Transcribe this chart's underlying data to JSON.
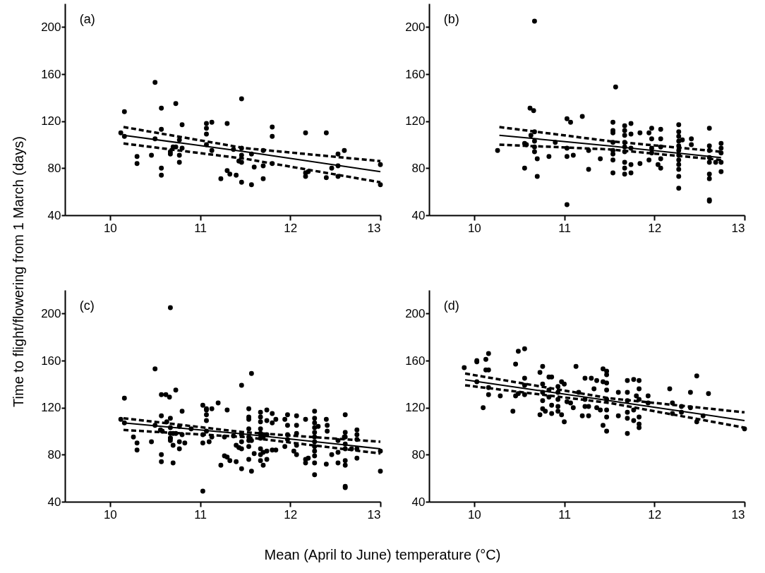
{
  "chart_data": [
    {
      "type": "scatter",
      "title": "(a)",
      "ylabel": "Time to flight/flowering from 1 March (days)",
      "xlim": [
        9.5,
        13
      ],
      "xticks": [
        10,
        11,
        12,
        13
      ],
      "ylim": [
        40,
        220
      ],
      "yticks": [
        40,
        80,
        120,
        160,
        200
      ],
      "series": [
        {
          "marker": "circle",
          "color": "#000000",
          "x": [
            10.12,
            10.16,
            10.16,
            10.3,
            10.3,
            10.46,
            10.5,
            10.5,
            10.57,
            10.57,
            10.57,
            10.57,
            10.67,
            10.67,
            10.7,
            10.73,
            10.73,
            10.77,
            10.77,
            10.77,
            10.8,
            10.8,
            11.07,
            11.07,
            11.07,
            11.07,
            11.13,
            11.13,
            11.23,
            11.3,
            11.3,
            11.33,
            11.37,
            11.4,
            11.43,
            11.46,
            11.46,
            11.46,
            11.46,
            11.46,
            11.57,
            11.57,
            11.6,
            11.7,
            11.7,
            11.7,
            11.8,
            11.8,
            11.8,
            12.17,
            12.17,
            12.17,
            12.2,
            12.4,
            12.4,
            12.46,
            12.53,
            12.53,
            12.53,
            12.6,
            13.0,
            13.0
          ],
          "values": [
            110,
            128,
            107,
            90,
            84,
            91,
            153,
            105,
            131,
            113,
            80,
            74,
            94,
            92,
            98,
            135,
            98,
            104,
            91,
            85,
            117,
            97,
            118,
            114,
            109,
            100,
            119,
            95,
            71,
            118,
            78,
            75,
            96,
            74,
            86,
            139,
            97,
            91,
            85,
            68,
            66,
            92,
            81,
            95,
            82,
            71,
            115,
            107,
            84,
            110,
            76,
            73,
            77,
            110,
            72,
            80,
            92,
            82,
            73,
            95,
            83,
            66
          ]
        },
        {
          "type": "line",
          "marker": "none",
          "line_style": "solid",
          "color": "#000000",
          "x": [
            10.15,
            11.5,
            13
          ],
          "values": [
            108,
            94,
            77
          ]
        },
        {
          "type": "line",
          "marker": "none",
          "line_style": "dashed",
          "color": "#000000",
          "x": [
            10.15,
            11.5,
            13
          ],
          "values": [
            115,
            97,
            86
          ]
        },
        {
          "type": "line",
          "marker": "none",
          "line_style": "dashed",
          "color": "#000000",
          "x": [
            10.15,
            11.5,
            13
          ],
          "values": [
            101,
            88,
            68
          ]
        }
      ]
    },
    {
      "type": "scatter",
      "title": "(b)",
      "xlim": [
        9.5,
        13
      ],
      "xticks": [
        10,
        11,
        12,
        13
      ],
      "ylim": [
        40,
        220
      ],
      "yticks": [
        40,
        80,
        120,
        160,
        200
      ],
      "series": [
        {
          "marker": "circle",
          "color": "#000000",
          "x": [
            10.26,
            10.56,
            10.56,
            10.58,
            10.62,
            10.66,
            10.67,
            10.63,
            10.67,
            10.67,
            10.67,
            10.67,
            10.7,
            10.7,
            10.83,
            10.9,
            11.03,
            11.07,
            11.03,
            11.03,
            11.03,
            11.1,
            11.2,
            11.27,
            11.27,
            11.4,
            11.54,
            11.54,
            11.54,
            11.54,
            11.54,
            11.54,
            11.54,
            11.54,
            11.57,
            11.67,
            11.67,
            11.67,
            11.67,
            11.67,
            11.67,
            11.67,
            11.67,
            11.67,
            11.74,
            11.74,
            11.74,
            11.74,
            11.74,
            11.84,
            11.84,
            11.94,
            11.94,
            11.97,
            11.97,
            11.97,
            11.97,
            12.04,
            12.07,
            12.07,
            12.07,
            12.07,
            12.07,
            12.27,
            12.27,
            12.27,
            12.27,
            12.27,
            12.27,
            12.27,
            12.27,
            12.27,
            12.27,
            12.27,
            12.27,
            12.31,
            12.41,
            12.41,
            12.61,
            12.61,
            12.61,
            12.61,
            12.61,
            12.61,
            12.61,
            12.61,
            12.61,
            12.68,
            12.74,
            12.74,
            12.74,
            12.74,
            12.74
          ],
          "values": [
            95,
            80,
            101,
            100,
            131,
            129,
            205,
            108,
            111,
            103,
            98,
            94,
            88,
            73,
            90,
            102,
            122,
            119,
            97,
            90,
            49,
            91,
            124,
            95,
            79,
            88,
            119,
            112,
            110,
            102,
            95,
            92,
            87,
            76,
            149,
            116,
            112,
            108,
            102,
            98,
            94,
            85,
            80,
            75,
            118,
            109,
            97,
            83,
            76,
            110,
            84,
            110,
            87,
            114,
            105,
            97,
            93,
            83,
            113,
            105,
            98,
            88,
            80,
            117,
            111,
            107,
            103,
            99,
            95,
            91,
            87,
            83,
            79,
            73,
            63,
            104,
            105,
            100,
            114,
            99,
            95,
            89,
            85,
            75,
            71,
            53,
            52,
            85,
            101,
            97,
            93,
            85,
            77
          ]
        },
        {
          "type": "line",
          "marker": "none",
          "line_style": "solid",
          "color": "#000000",
          "x": [
            10.28,
            11.5,
            12.74
          ],
          "values": [
            108,
            99,
            89
          ]
        },
        {
          "type": "line",
          "marker": "none",
          "line_style": "dashed",
          "color": "#000000",
          "x": [
            10.28,
            11.5,
            12.74
          ],
          "values": [
            115,
            103,
            94
          ]
        },
        {
          "type": "line",
          "marker": "none",
          "line_style": "dashed",
          "color": "#000000",
          "x": [
            10.28,
            11.5,
            12.74
          ],
          "values": [
            100,
            96,
            87
          ]
        }
      ]
    },
    {
      "type": "scatter",
      "title": "(c)",
      "xlabel": "Mean (April to June) temperature (°C)",
      "xlim": [
        9.5,
        13
      ],
      "xticks": [
        10,
        11,
        12,
        13
      ],
      "ylim": [
        40,
        220
      ],
      "yticks": [
        40,
        80,
        120,
        160,
        200
      ],
      "series": [
        {
          "marker": "circle",
          "color": "#000000",
          "x": [
            10.12,
            10.16,
            10.16,
            10.3,
            10.3,
            10.46,
            10.5,
            10.5,
            10.57,
            10.57,
            10.57,
            10.57,
            10.67,
            10.67,
            10.7,
            10.73,
            10.73,
            10.77,
            10.77,
            10.77,
            10.8,
            10.8,
            11.07,
            11.07,
            11.07,
            11.07,
            11.13,
            11.13,
            11.23,
            11.3,
            11.3,
            11.33,
            11.37,
            11.4,
            11.43,
            11.46,
            11.46,
            11.46,
            11.46,
            11.46,
            11.57,
            11.57,
            11.6,
            11.7,
            11.7,
            11.7,
            11.8,
            11.8,
            11.8,
            12.17,
            12.17,
            12.17,
            12.2,
            12.4,
            12.4,
            12.46,
            12.53,
            12.53,
            12.53,
            12.6,
            13.0,
            13.0,
            10.26,
            10.56,
            10.58,
            10.62,
            10.66,
            10.67,
            10.63,
            10.67,
            10.67,
            10.67,
            10.67,
            10.7,
            10.7,
            10.83,
            10.9,
            11.03,
            11.07,
            11.03,
            11.03,
            11.03,
            11.1,
            11.2,
            11.27,
            11.27,
            11.4,
            11.54,
            11.54,
            11.54,
            11.54,
            11.54,
            11.54,
            11.54,
            11.54,
            11.57,
            11.67,
            11.67,
            11.67,
            11.67,
            11.67,
            11.67,
            11.67,
            11.67,
            11.67,
            11.74,
            11.74,
            11.74,
            11.74,
            11.74,
            11.84,
            11.84,
            11.94,
            11.94,
            11.97,
            11.97,
            11.97,
            11.97,
            12.04,
            12.07,
            12.07,
            12.07,
            12.07,
            12.07,
            12.27,
            12.27,
            12.27,
            12.27,
            12.27,
            12.27,
            12.27,
            12.27,
            12.27,
            12.27,
            12.27,
            12.27,
            12.31,
            12.41,
            12.41,
            12.61,
            12.61,
            12.61,
            12.61,
            12.61,
            12.61,
            12.61,
            12.61,
            12.61,
            12.68,
            12.74,
            12.74,
            12.74,
            12.74,
            12.74
          ],
          "values": [
            110,
            128,
            107,
            90,
            84,
            91,
            153,
            105,
            131,
            113,
            80,
            74,
            94,
            92,
            98,
            135,
            98,
            104,
            91,
            85,
            117,
            97,
            118,
            114,
            109,
            100,
            119,
            95,
            71,
            118,
            78,
            75,
            96,
            74,
            86,
            139,
            97,
            91,
            85,
            68,
            66,
            92,
            81,
            95,
            82,
            71,
            115,
            107,
            84,
            110,
            76,
            73,
            77,
            110,
            72,
            80,
            92,
            82,
            73,
            95,
            83,
            66,
            95,
            101,
            100,
            131,
            129,
            205,
            108,
            111,
            103,
            98,
            94,
            88,
            73,
            90,
            102,
            122,
            119,
            97,
            90,
            49,
            91,
            124,
            95,
            79,
            88,
            119,
            112,
            110,
            102,
            95,
            92,
            87,
            76,
            149,
            116,
            112,
            108,
            102,
            98,
            94,
            85,
            80,
            75,
            118,
            109,
            97,
            83,
            76,
            110,
            84,
            110,
            87,
            114,
            105,
            97,
            93,
            83,
            113,
            105,
            98,
            88,
            80,
            117,
            111,
            107,
            103,
            99,
            95,
            91,
            87,
            83,
            79,
            73,
            63,
            104,
            105,
            100,
            114,
            99,
            95,
            89,
            85,
            75,
            71,
            53,
            52,
            85,
            101,
            97,
            93,
            85,
            77
          ]
        },
        {
          "type": "line",
          "marker": "none",
          "line_style": "solid",
          "color": "#000000",
          "x": [
            10.15,
            11.5,
            13
          ],
          "values": [
            107,
            97.5,
            85
          ]
        },
        {
          "type": "line",
          "marker": "none",
          "line_style": "dashed",
          "color": "#000000",
          "x": [
            10.15,
            11.5,
            13
          ],
          "values": [
            111,
            99,
            91
          ]
        },
        {
          "type": "line",
          "marker": "none",
          "line_style": "dashed",
          "color": "#000000",
          "x": [
            10.15,
            11.5,
            13
          ],
          "values": [
            101,
            95,
            81
          ]
        }
      ]
    },
    {
      "type": "scatter",
      "title": "(d)",
      "xlim": [
        9.5,
        13
      ],
      "xticks": [
        10,
        11,
        12,
        13
      ],
      "ylim": [
        40,
        220
      ],
      "yticks": [
        40,
        80,
        120,
        160,
        200
      ],
      "series": [
        {
          "marker": "circle",
          "color": "#000000",
          "x": [
            9.89,
            10.03,
            10.03,
            10.03,
            10.1,
            10.13,
            10.13,
            10.16,
            10.16,
            10.16,
            10.16,
            10.29,
            10.43,
            10.46,
            10.46,
            10.49,
            10.49,
            10.56,
            10.56,
            10.56,
            10.56,
            10.73,
            10.73,
            10.76,
            10.76,
            10.76,
            10.76,
            10.76,
            10.79,
            10.83,
            10.86,
            10.83,
            10.83,
            10.86,
            10.86,
            10.93,
            10.93,
            10.93,
            10.93,
            10.93,
            10.97,
            10.97,
            11.0,
            11.0,
            11.03,
            11.07,
            11.1,
            11.13,
            11.16,
            11.2,
            11.23,
            11.23,
            11.23,
            11.27,
            11.27,
            11.3,
            11.33,
            11.36,
            11.36,
            11.4,
            11.43,
            11.43,
            11.43,
            11.47,
            11.47,
            11.47,
            11.47,
            11.47,
            11.47,
            11.47,
            11.47,
            11.6,
            11.6,
            11.7,
            11.7,
            11.7,
            11.7,
            11.7,
            11.7,
            11.77,
            11.77,
            11.77,
            11.8,
            11.83,
            11.83,
            11.83,
            11.83,
            11.83,
            11.83,
            11.93,
            11.93,
            12.17,
            12.2,
            12.2,
            12.3,
            12.3,
            12.4,
            12.4,
            12.47,
            12.47,
            12.54,
            12.6,
            13.0
          ],
          "values": [
            154,
            160,
            159,
            142,
            120,
            161,
            152,
            166,
            152,
            137,
            131,
            130,
            117,
            157,
            130,
            168,
            132,
            170,
            145,
            139,
            131,
            150,
            114,
            155,
            140,
            133,
            126,
            119,
            117,
            146,
            146,
            135,
            129,
            122,
            115,
            138,
            133,
            127,
            121,
            117,
            142,
            114,
            140,
            108,
            125,
            124,
            120,
            155,
            133,
            113,
            145,
            127,
            121,
            121,
            113,
            145,
            136,
            143,
            120,
            118,
            153,
            142,
            105,
            151,
            148,
            141,
            135,
            127,
            118,
            112,
            100,
            133,
            113,
            143,
            133,
            126,
            116,
            111,
            98,
            144,
            118,
            109,
            130,
            143,
            136,
            127,
            112,
            106,
            103,
            130,
            124,
            136,
            124,
            115,
            121,
            116,
            133,
            120,
            147,
            108,
            113,
            132,
            102
          ]
        },
        {
          "type": "line",
          "marker": "none",
          "line_style": "solid",
          "color": "#000000",
          "x": [
            9.9,
            11.5,
            13
          ],
          "values": [
            143.6,
            126,
            109
          ]
        },
        {
          "type": "line",
          "marker": "none",
          "line_style": "dashed",
          "color": "#000000",
          "x": [
            9.9,
            11.5,
            13
          ],
          "values": [
            149,
            128,
            116
          ]
        },
        {
          "type": "line",
          "marker": "none",
          "line_style": "dashed",
          "color": "#000000",
          "x": [
            9.9,
            11.5,
            13
          ],
          "values": [
            139,
            124,
            103
          ]
        }
      ]
    }
  ]
}
